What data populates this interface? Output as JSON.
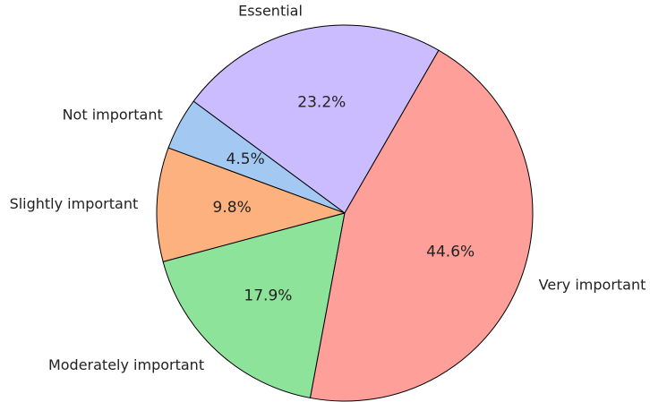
{
  "chart_data": {
    "type": "pie",
    "start_angle_deg": 60,
    "direction": "counterclockwise",
    "slices": [
      {
        "label": "Essential",
        "value": 23.2,
        "pct_label": "23.2%",
        "color": "#cbbcff"
      },
      {
        "label": "Not important",
        "value": 4.5,
        "pct_label": "4.5%",
        "color": "#a3c9f3"
      },
      {
        "label": "Slightly important",
        "value": 9.8,
        "pct_label": "9.8%",
        "color": "#fdb17f"
      },
      {
        "label": "Moderately important",
        "value": 17.9,
        "pct_label": "17.9%",
        "color": "#8ee39b"
      },
      {
        "label": "Very important",
        "value": 44.6,
        "pct_label": "44.6%",
        "color": "#fe9f9a"
      }
    ]
  }
}
